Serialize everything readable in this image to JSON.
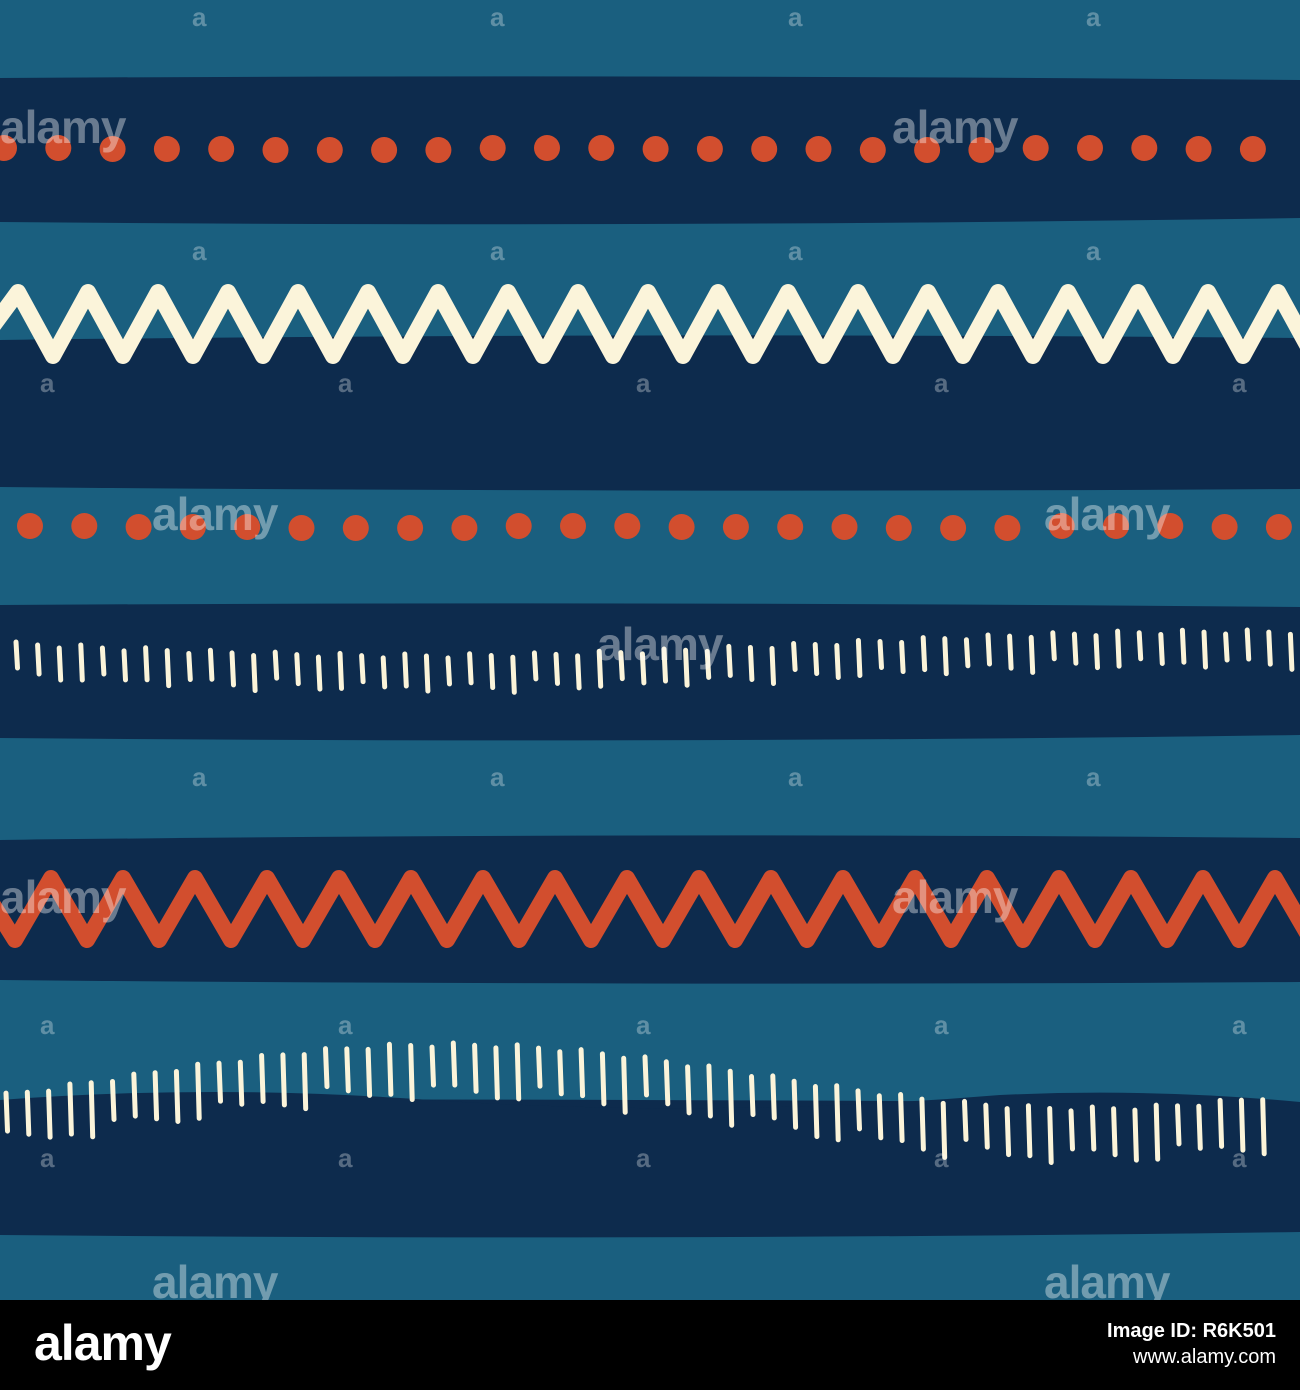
{
  "colors": {
    "light_blue": "#1a5f7f",
    "dark_navy": "#0d2b4d",
    "orange": "#d24e2e",
    "cream": "#fbf4da"
  },
  "watermark": {
    "text": "alamy",
    "small_text": "a"
  },
  "footer": {
    "logo": "alamy",
    "image_id": "Image ID: R6K501",
    "site": "www.alamy.com"
  }
}
